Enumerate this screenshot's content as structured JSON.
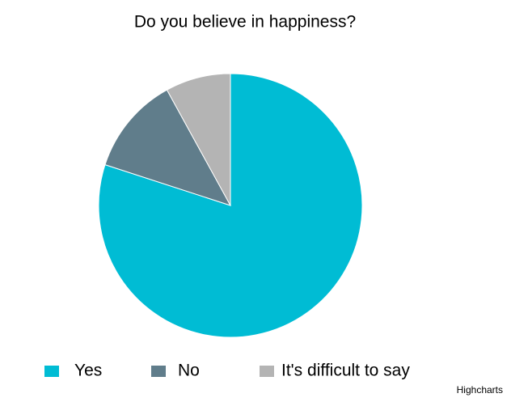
{
  "chart_data": {
    "type": "pie",
    "title": "Do you believe in happiness?",
    "categories": [
      "Yes",
      "No",
      "It's difficult to say"
    ],
    "values": [
      80,
      12,
      8
    ],
    "colors": [
      "#00bcd4",
      "#607d8b",
      "#b4b4b4"
    ],
    "legend": "bottom",
    "credits": "Highcharts"
  }
}
